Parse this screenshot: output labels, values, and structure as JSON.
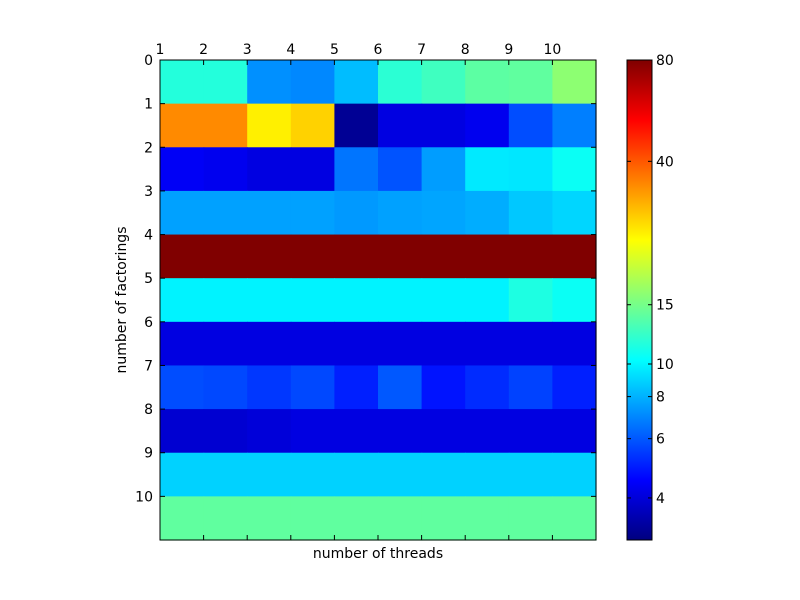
{
  "chart_data": {
    "type": "heatmap",
    "title": "",
    "xlabel": "number of threads",
    "ylabel": "number of factorings",
    "x_ticks": [
      "1",
      "2",
      "3",
      "4",
      "5",
      "6",
      "7",
      "8",
      "9",
      "10"
    ],
    "y_ticks": [
      "0",
      "1",
      "2",
      "3",
      "4",
      "5",
      "6",
      "7",
      "8",
      "9",
      "10"
    ],
    "x_tick_position": "top",
    "colormap": "jet",
    "color_scale": "log",
    "clim": [
      3,
      80
    ],
    "colorbar_ticks": [
      "4",
      "6",
      "8",
      "10",
      "15",
      "40",
      "80"
    ],
    "colorbar_tick_values": [
      4,
      6,
      8,
      10,
      15,
      40,
      80
    ],
    "grid": false,
    "values": [
      [
        11.5,
        11.5,
        7.2,
        7.0,
        8.3,
        11.8,
        12.6,
        13.8,
        14.0,
        16.2
      ],
      [
        34.0,
        34.0,
        24.5,
        27.0,
        3.2,
        4.1,
        4.1,
        4.3,
        5.8,
        6.8
      ],
      [
        4.4,
        4.3,
        4.1,
        4.1,
        6.6,
        5.9,
        7.5,
        9.6,
        9.5,
        10.6
      ],
      [
        7.6,
        7.6,
        7.6,
        7.6,
        7.4,
        7.6,
        7.7,
        7.9,
        8.6,
        9.0
      ],
      [
        80,
        80,
        80,
        80,
        80,
        80,
        80,
        80,
        80,
        80
      ],
      [
        9.9,
        9.9,
        9.9,
        9.9,
        9.9,
        9.9,
        9.9,
        9.9,
        11.3,
        10.6
      ],
      [
        4.1,
        4.1,
        4.1,
        4.1,
        4.1,
        4.1,
        4.1,
        4.1,
        4.1,
        4.1
      ],
      [
        5.8,
        5.7,
        5.4,
        5.7,
        5.0,
        6.0,
        4.8,
        5.2,
        5.6,
        5.0
      ],
      [
        3.9,
        3.9,
        4.0,
        4.1,
        4.1,
        4.1,
        4.1,
        4.1,
        4.1,
        4.1
      ],
      [
        8.9,
        8.9,
        8.9,
        8.9,
        8.9,
        8.9,
        8.9,
        8.9,
        8.9,
        8.9
      ],
      [
        14.0,
        14.0,
        14.0,
        14.0,
        14.0,
        14.0,
        14.0,
        14.0,
        14.0,
        14.0
      ]
    ]
  }
}
